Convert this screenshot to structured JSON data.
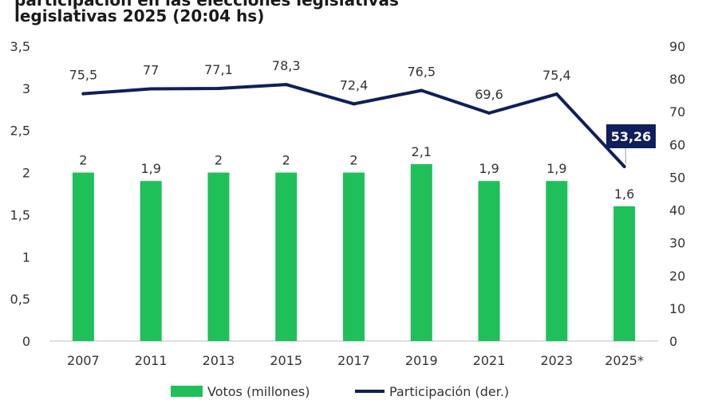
{
  "title": {
    "line1": "participación en las elecciones legislativas",
    "line2": "legislativas 2025 (20:04 hs)"
  },
  "colors": {
    "bars": "#1fbf5a",
    "line": "#0e1f5b",
    "callout_bg": "#0e1f5b",
    "callout_text": "#ffffff"
  },
  "chart_data": {
    "type": "bar",
    "categories": [
      "2007",
      "2011",
      "2013",
      "2015",
      "2017",
      "2019",
      "2021",
      "2023",
      "2025*"
    ],
    "series": [
      {
        "name": "Votos (millones)",
        "axis": "left",
        "type": "bar",
        "values": [
          2,
          1.9,
          2,
          2,
          2,
          2.1,
          1.9,
          1.9,
          1.6
        ],
        "labels": [
          "2",
          "1,9",
          "2",
          "2",
          "2",
          "2,1",
          "1,9",
          "1,9",
          "1,6"
        ]
      },
      {
        "name": "Participación (der.)",
        "axis": "right",
        "type": "line",
        "values": [
          75.5,
          77,
          77.1,
          78.3,
          72.4,
          76.5,
          69.6,
          75.4,
          53.26
        ],
        "labels": [
          "75,5",
          "77",
          "77,1",
          "78,3",
          "72,4",
          "76,5",
          "69,6",
          "75,4",
          "53,26"
        ]
      }
    ],
    "yleft": {
      "lim": [
        0,
        3.5
      ],
      "ticks": [
        "0",
        "0,5",
        "1",
        "1,5",
        "2",
        "2,5",
        "3",
        "3,5"
      ]
    },
    "yright": {
      "lim": [
        0,
        90
      ],
      "ticks": [
        "0",
        "10",
        "20",
        "30",
        "40",
        "50",
        "60",
        "70",
        "80",
        "90"
      ]
    },
    "highlight_label": "53,26",
    "legend_position": "bottom",
    "grid": false
  }
}
